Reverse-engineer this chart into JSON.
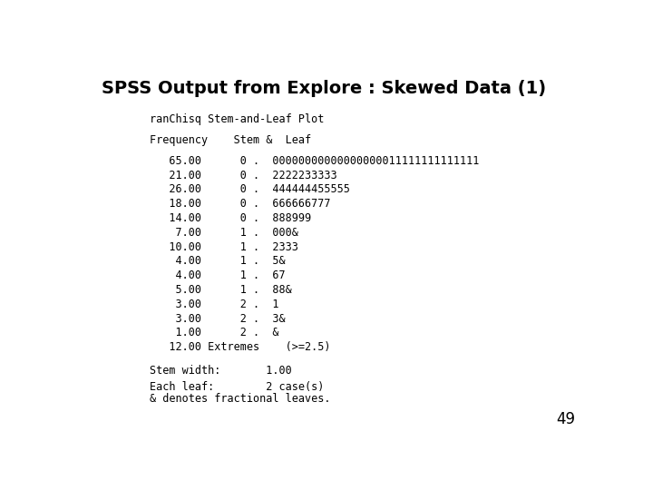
{
  "title": "SPSS Output from Explore : Skewed Data (1)",
  "subtitle": "ranChisq Stem-and-Leaf Plot",
  "header": "Frequency    Stem &  Leaf",
  "rows": [
    {
      "freq": "   65.00",
      "stem": "0 .",
      "leaf": "00000000000000000011111111111111"
    },
    {
      "freq": "   21.00",
      "stem": "0 .",
      "leaf": "2222233333"
    },
    {
      "freq": "   26.00",
      "stem": "0 .",
      "leaf": "444444455555"
    },
    {
      "freq": "   18.00",
      "stem": "0 .",
      "leaf": "666666777"
    },
    {
      "freq": "   14.00",
      "stem": "0 .",
      "leaf": "888999"
    },
    {
      "freq": "    7.00",
      "stem": "1 .",
      "leaf": "000&"
    },
    {
      "freq": "   10.00",
      "stem": "1 .",
      "leaf": "2333"
    },
    {
      "freq": "    4.00",
      "stem": "1 .",
      "leaf": "5&"
    },
    {
      "freq": "    4.00",
      "stem": "1 .",
      "leaf": "67"
    },
    {
      "freq": "    5.00",
      "stem": "1 .",
      "leaf": "88&"
    },
    {
      "freq": "    3.00",
      "stem": "2 .",
      "leaf": "1"
    },
    {
      "freq": "    3.00",
      "stem": "2 .",
      "leaf": "3&"
    },
    {
      "freq": "    1.00",
      "stem": "2 .",
      "leaf": "&"
    },
    {
      "freq": "   12.00 Extremes",
      "stem": "",
      "leaf": "(>=2.5)"
    }
  ],
  "footer1": "Stem width:       1.00",
  "footer2": "Each leaf:        2 case(s)",
  "footnote": "& denotes fractional leaves.",
  "page_number": "49",
  "bg_color": "#ffffff",
  "font_color": "#000000",
  "title_fontsize": 14,
  "body_fontsize": 8.5
}
